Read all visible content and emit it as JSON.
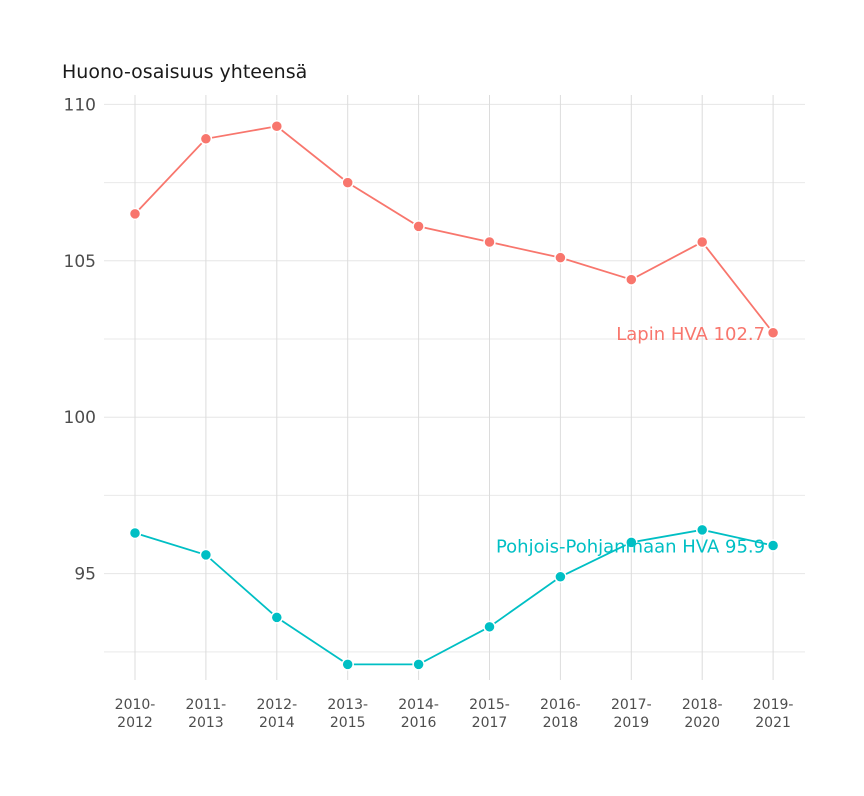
{
  "chart_data": {
    "type": "line",
    "title": "Huono-osaisuus yhteensä",
    "xlabel": "",
    "ylabel": "",
    "categories": [
      "2010-\n2012",
      "2011-\n2013",
      "2012-\n2014",
      "2013-\n2015",
      "2014-\n2016",
      "2015-\n2017",
      "2016-\n2018",
      "2017-\n2019",
      "2018-\n2020",
      "2019-\n2021"
    ],
    "ylim": [
      91.6,
      110.3
    ],
    "yticks": [
      95,
      100,
      105,
      110
    ],
    "grid": true,
    "legend": "none",
    "series": [
      {
        "name": "Lapin HVA",
        "color": "#F8766D",
        "end_label": "Lapin HVA 102.7",
        "values": [
          106.5,
          108.9,
          109.3,
          107.5,
          106.1,
          105.6,
          105.1,
          104.4,
          105.6,
          102.7
        ]
      },
      {
        "name": "Pohjois-Pohjanmaan HVA",
        "color": "#00BFC4",
        "end_label": "Pohjois-Pohjanmaan HVA 95.9",
        "values": [
          96.3,
          95.6,
          93.6,
          92.1,
          92.1,
          93.3,
          94.9,
          96.0,
          96.4,
          95.9
        ]
      }
    ]
  }
}
